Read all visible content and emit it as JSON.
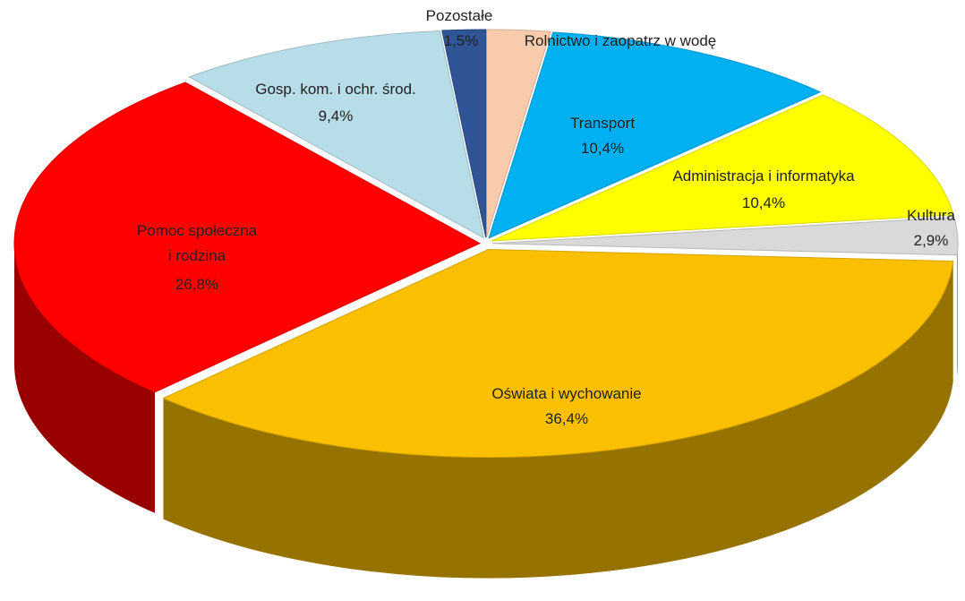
{
  "chart_data": {
    "type": "pie",
    "categories": [
      "Rolnictwo i zaopatrz w wodę",
      "Transport",
      "Administracja i  informatyka",
      "Kultura",
      "Oświata i wychowanie",
      "Pomoc społeczna\ni rodzina",
      "Gosp. kom. i ochr. środ.",
      "Pozostałe"
    ],
    "values": [
      2.2,
      10.4,
      10.4,
      2.9,
      36.4,
      26.8,
      9.4,
      1.5
    ],
    "value_labels": [
      null,
      "10,4%",
      "10,4%",
      "2,9%",
      "36,4%",
      "26,8%",
      "9,4%",
      "1,5%"
    ],
    "colors": [
      "#f8cbad",
      "#00b0f0",
      "#ffff00",
      "#d9d9d9",
      "#fac000",
      "#ff0000",
      "#b7dde8",
      "#2f5597"
    ]
  }
}
